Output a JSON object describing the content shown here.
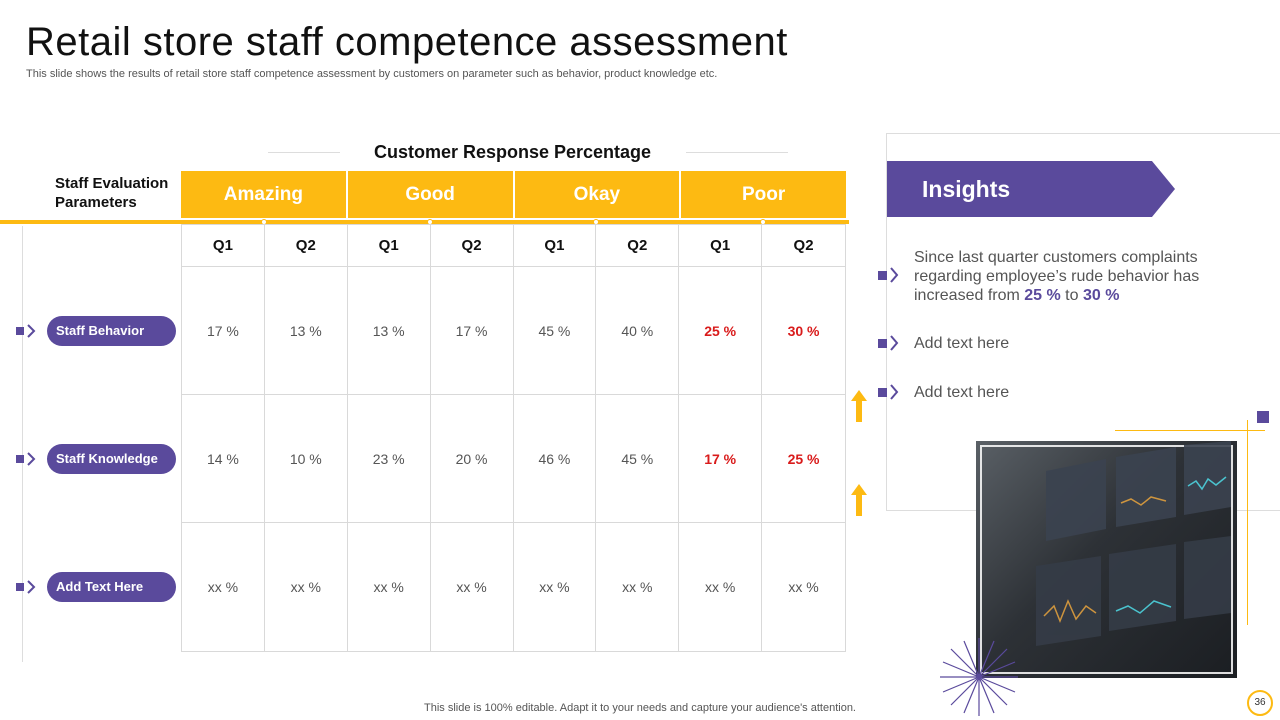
{
  "slide": {
    "title": "Retail store staff competence assessment",
    "subtitle": "This slide shows the results of retail store staff competence assessment by customers on parameter such as behavior, product knowledge etc.",
    "footer": "This slide is 100% editable. Adapt it to your needs and capture your audience's attention.",
    "page_number": "36"
  },
  "table": {
    "title": "Customer Response Percentage",
    "param_header": [
      "Staff Evaluation",
      "Parameters"
    ],
    "categories": [
      "Amazing",
      "Good",
      "Okay",
      "Poor"
    ],
    "quarters": [
      "Q1",
      "Q2",
      "Q1",
      "Q2",
      "Q1",
      "Q2",
      "Q1",
      "Q2"
    ],
    "rows": [
      {
        "label": "Staff Behavior",
        "values": [
          "17 %",
          "13 %",
          "13 %",
          "17 %",
          "45 %",
          "40 %",
          "25 %",
          "30 %"
        ]
      },
      {
        "label": "Staff Knowledge",
        "values": [
          "14 %",
          "10 %",
          "23 %",
          "20 %",
          "46 %",
          "45 %",
          "17 %",
          "25 %"
        ]
      },
      {
        "label": "Add Text Here",
        "values": [
          "xx %",
          "xx %",
          "xx %",
          "xx %",
          "xx %",
          "xx %",
          "xx %",
          "xx %"
        ]
      }
    ]
  },
  "insights": {
    "heading": "Insights",
    "item1_before": "Since last quarter customers complaints regarding employee’s rude behavior has increased from ",
    "item1_from": "25 %",
    "item1_mid": " to ",
    "item1_to": "30 %",
    "item2": "Add text here",
    "item3": "Add text here"
  },
  "colors": {
    "accent_yellow": "#FDBA12",
    "accent_purple": "#5A4A9C",
    "alert_red": "#D91B1B"
  }
}
